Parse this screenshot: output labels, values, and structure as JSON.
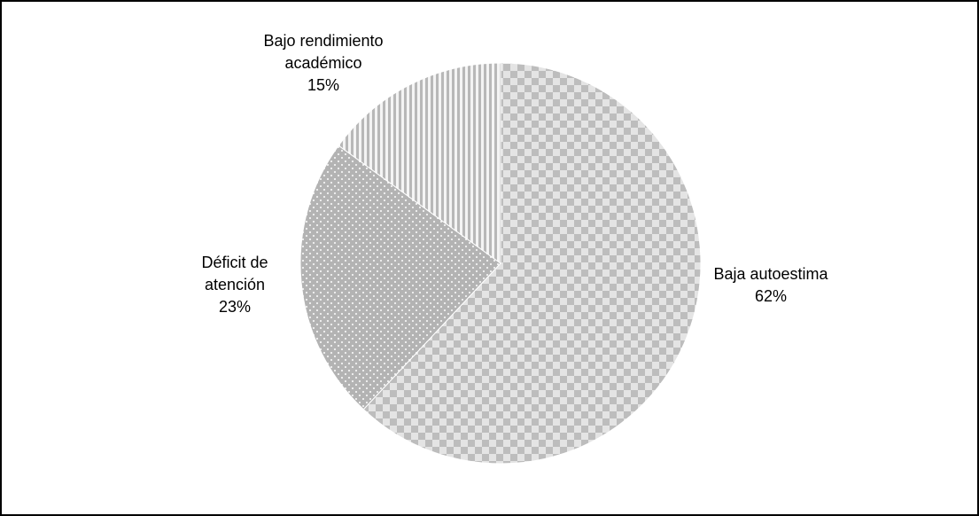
{
  "chart_data": {
    "type": "pie",
    "categories": [
      "Baja autoestima",
      "Déficit de atención",
      "Bajo rendimiento académico"
    ],
    "values": [
      62,
      23,
      15
    ],
    "value_labels": [
      "62%",
      "23%",
      "15%"
    ],
    "patterns": [
      "checker",
      "dots",
      "stripes"
    ]
  }
}
